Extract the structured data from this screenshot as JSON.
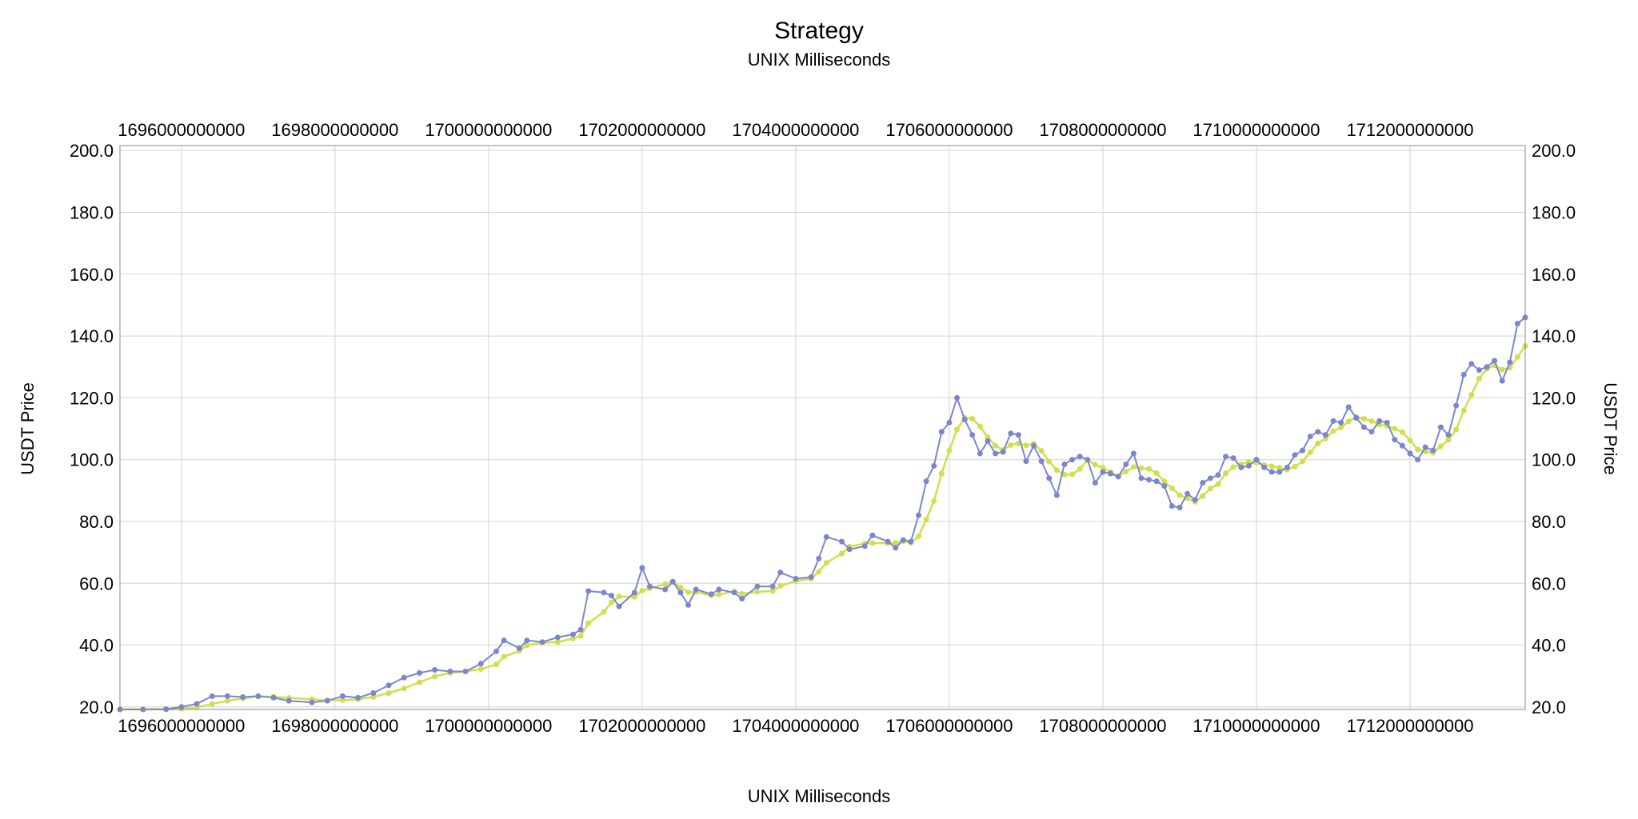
{
  "chart_data": {
    "type": "line",
    "title": "Strategy",
    "subtitle": "UNIX Milliseconds",
    "xlabel": "UNIX Milliseconds",
    "ylabel": "USDT Price",
    "xlim": [
      1695200000000,
      1713500000000
    ],
    "ylim": [
      19.2,
      201.6
    ],
    "x_ticks": [
      "1696000000000",
      "1698000000000",
      "1700000000000",
      "1702000000000",
      "1704000000000",
      "1706000000000",
      "1708000000000",
      "1710000000000",
      "1712000000000"
    ],
    "y_ticks": [
      "20.0",
      "40.0",
      "60.0",
      "80.0",
      "100.0",
      "120.0",
      "140.0",
      "160.0",
      "180.0",
      "200.0"
    ],
    "grid": true,
    "legend": "none",
    "colors": {
      "price": "#7b87cc",
      "ma": "#cfe04f",
      "grid": "#d4d4d4",
      "axis": "#888888"
    },
    "series": [
      {
        "key": "price",
        "points": [
          [
            1695200000000,
            19.2
          ],
          [
            1695500000000,
            19.2
          ],
          [
            1695800000000,
            19.3
          ],
          [
            1696000000000,
            20.0
          ],
          [
            1696200000000,
            21.0
          ],
          [
            1696400000000,
            23.5
          ],
          [
            1696600000000,
            23.5
          ],
          [
            1696800000000,
            23.2
          ],
          [
            1697000000000,
            23.5
          ],
          [
            1697200000000,
            23.0
          ],
          [
            1697400000000,
            22.0
          ],
          [
            1697700000000,
            21.5
          ],
          [
            1697900000000,
            22.0
          ],
          [
            1698100000000,
            23.5
          ],
          [
            1698300000000,
            23.0
          ],
          [
            1698500000000,
            24.5
          ],
          [
            1698700000000,
            27.0
          ],
          [
            1698900000000,
            29.5
          ],
          [
            1699100000000,
            31.0
          ],
          [
            1699300000000,
            32.0
          ],
          [
            1699500000000,
            31.5
          ],
          [
            1699700000000,
            31.5
          ],
          [
            1699900000000,
            34.0
          ],
          [
            1700100000000,
            38.0
          ],
          [
            1700200000000,
            41.5
          ],
          [
            1700400000000,
            39.0
          ],
          [
            1700500000000,
            41.5
          ],
          [
            1700700000000,
            41.0
          ],
          [
            1700900000000,
            42.5
          ],
          [
            1701100000000,
            43.5
          ],
          [
            1701200000000,
            45.0
          ],
          [
            1701300000000,
            57.5
          ],
          [
            1701500000000,
            57.0
          ],
          [
            1701600000000,
            56.0
          ],
          [
            1701700000000,
            52.5
          ],
          [
            1701900000000,
            57.0
          ],
          [
            1702000000000,
            65.0
          ],
          [
            1702100000000,
            59.0
          ],
          [
            1702300000000,
            58.0
          ],
          [
            1702400000000,
            60.5
          ],
          [
            1702500000000,
            57.0
          ],
          [
            1702600000000,
            53.0
          ],
          [
            1702700000000,
            58.0
          ],
          [
            1702900000000,
            56.5
          ],
          [
            1703000000000,
            58.0
          ],
          [
            1703200000000,
            57.0
          ],
          [
            1703300000000,
            55.0
          ],
          [
            1703500000000,
            59.0
          ],
          [
            1703700000000,
            59.0
          ],
          [
            1703800000000,
            63.5
          ],
          [
            1704000000000,
            61.5
          ],
          [
            1704200000000,
            62.0
          ],
          [
            1704300000000,
            68.0
          ],
          [
            1704400000000,
            75.0
          ],
          [
            1704600000000,
            73.5
          ],
          [
            1704700000000,
            71.0
          ],
          [
            1704900000000,
            72.0
          ],
          [
            1705000000000,
            75.5
          ],
          [
            1705200000000,
            73.5
          ],
          [
            1705300000000,
            71.5
          ],
          [
            1705400000000,
            74.0
          ],
          [
            1705500000000,
            73.5
          ],
          [
            1705600000000,
            82.0
          ],
          [
            1705700000000,
            93.0
          ],
          [
            1705800000000,
            98.0
          ],
          [
            1705900000000,
            109.0
          ],
          [
            1706000000000,
            112.0
          ],
          [
            1706100000000,
            120.0
          ],
          [
            1706200000000,
            113.0
          ],
          [
            1706300000000,
            108.0
          ],
          [
            1706400000000,
            102.0
          ],
          [
            1706500000000,
            106.0
          ],
          [
            1706600000000,
            102.0
          ],
          [
            1706700000000,
            102.5
          ],
          [
            1706800000000,
            108.5
          ],
          [
            1706900000000,
            108.0
          ],
          [
            1707000000000,
            99.5
          ],
          [
            1707100000000,
            104.5
          ],
          [
            1707200000000,
            99.5
          ],
          [
            1707300000000,
            94.0
          ],
          [
            1707400000000,
            88.5
          ],
          [
            1707500000000,
            98.5
          ],
          [
            1707600000000,
            100.0
          ],
          [
            1707700000000,
            101.0
          ],
          [
            1707800000000,
            100.0
          ],
          [
            1707900000000,
            92.5
          ],
          [
            1708000000000,
            96.0
          ],
          [
            1708100000000,
            95.5
          ],
          [
            1708200000000,
            94.5
          ],
          [
            1708300000000,
            98.5
          ],
          [
            1708400000000,
            102.0
          ],
          [
            1708500000000,
            94.0
          ],
          [
            1708600000000,
            93.5
          ],
          [
            1708700000000,
            93.0
          ],
          [
            1708800000000,
            91.5
          ],
          [
            1708900000000,
            85.0
          ],
          [
            1709000000000,
            84.5
          ],
          [
            1709100000000,
            89.0
          ],
          [
            1709200000000,
            87.0
          ],
          [
            1709300000000,
            92.5
          ],
          [
            1709400000000,
            94.0
          ],
          [
            1709500000000,
            95.0
          ],
          [
            1709600000000,
            101.0
          ],
          [
            1709700000000,
            100.5
          ],
          [
            1709800000000,
            97.5
          ],
          [
            1709900000000,
            98.0
          ],
          [
            1710000000000,
            100.0
          ],
          [
            1710100000000,
            97.5
          ],
          [
            1710200000000,
            96.0
          ],
          [
            1710300000000,
            96.0
          ],
          [
            1710400000000,
            97.5
          ],
          [
            1710500000000,
            101.5
          ],
          [
            1710600000000,
            103.0
          ],
          [
            1710700000000,
            107.5
          ],
          [
            1710800000000,
            109.0
          ],
          [
            1710900000000,
            108.0
          ],
          [
            1711000000000,
            112.5
          ],
          [
            1711100000000,
            112.0
          ],
          [
            1711200000000,
            117.0
          ],
          [
            1711300000000,
            113.5
          ],
          [
            1711400000000,
            110.5
          ],
          [
            1711500000000,
            109.0
          ],
          [
            1711600000000,
            112.5
          ],
          [
            1711700000000,
            112.0
          ],
          [
            1711800000000,
            106.5
          ],
          [
            1711900000000,
            104.5
          ],
          [
            1712000000000,
            102.0
          ],
          [
            1712100000000,
            100.0
          ],
          [
            1712200000000,
            104.0
          ],
          [
            1712300000000,
            103.0
          ],
          [
            1712400000000,
            110.5
          ],
          [
            1712500000000,
            108.0
          ],
          [
            1712600000000,
            117.5
          ],
          [
            1712700000000,
            127.5
          ],
          [
            1712800000000,
            131.0
          ],
          [
            1712900000000,
            129.0
          ],
          [
            1713000000000,
            130.0
          ],
          [
            1713100000000,
            132.0
          ],
          [
            1713200000000,
            125.5
          ],
          [
            1713300000000,
            131.5
          ],
          [
            1713400000000,
            144.0
          ],
          [
            1713500000000,
            146.0
          ]
        ]
      }
    ]
  }
}
